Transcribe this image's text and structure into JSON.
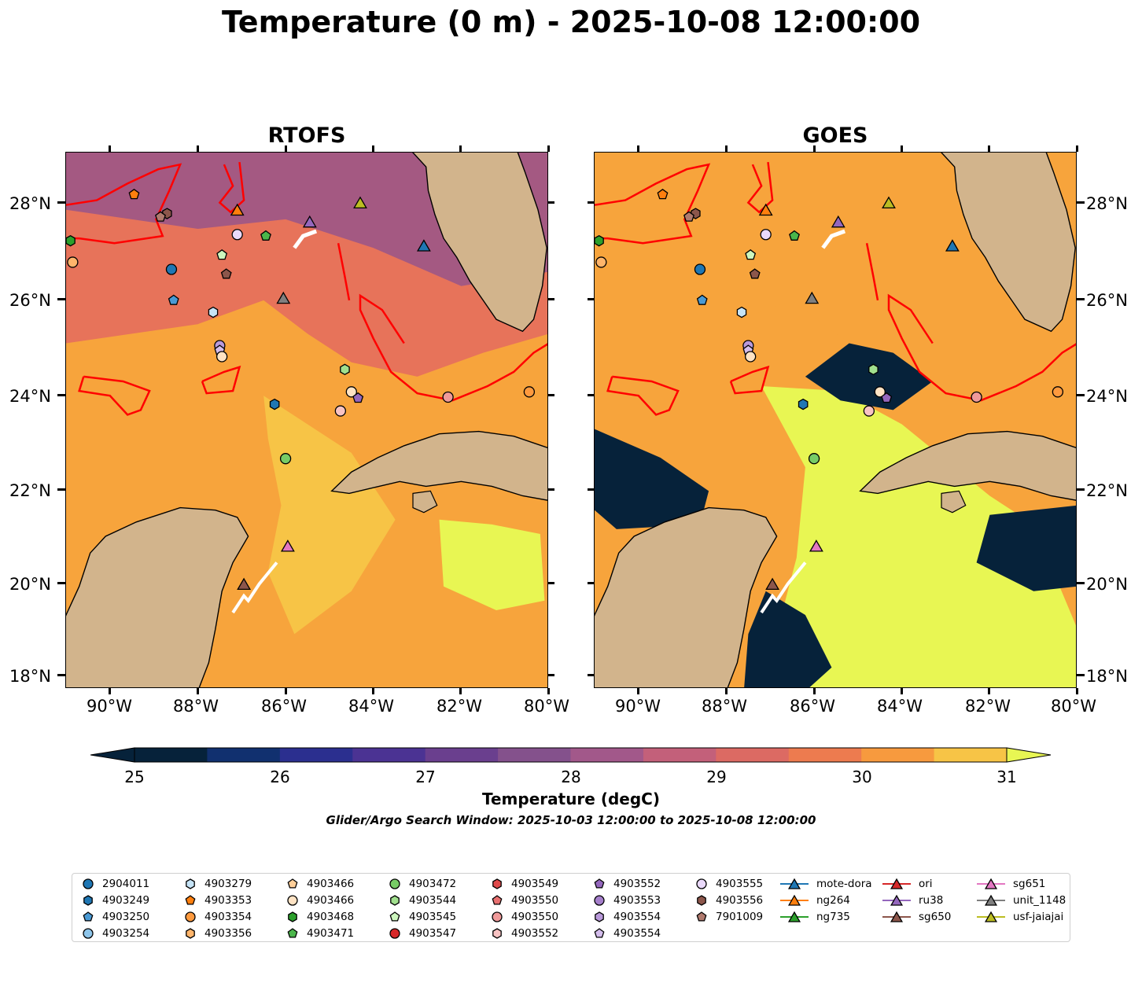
{
  "title": "Temperature (0 m) - 2025-10-08 12:00:00",
  "panels": [
    {
      "title": "RTOFS",
      "mode": "model"
    },
    {
      "title": "GOES",
      "mode": "satellite"
    }
  ],
  "lat_labels": [
    "18°N",
    "20°N",
    "22°N",
    "24°N",
    "26°N",
    "28°N"
  ],
  "lon_labels": [
    "90°W",
    "88°W",
    "86°W",
    "84°W",
    "82°W",
    "80°W"
  ],
  "colorbar": {
    "title": "Temperature (degC)",
    "tick_labels": [
      "25",
      "26",
      "27",
      "28",
      "29",
      "30",
      "31"
    ],
    "levels": [
      25,
      25.5,
      26,
      26.5,
      27,
      27.5,
      28,
      28.5,
      29,
      29.5,
      30,
      30.5,
      31
    ],
    "colors": [
      "#06223a",
      "#11306f",
      "#2b2f8f",
      "#4b3393",
      "#6a3f8e",
      "#84518c",
      "#a2588a",
      "#c3607a",
      "#dc6a63",
      "#ed7b4f",
      "#f79a3e",
      "#f7c446",
      "#e8f653"
    ]
  },
  "search_window": "Glider/Argo Search Window: 2025-10-03 12:00:00 to 2025-10-08 12:00:00",
  "colors": {
    "land": "#d2b48c",
    "sst_warm": "#f7a43c",
    "sst_mid": "#e7735a",
    "sst_cool": "#9c5786",
    "cloud": "#06223a",
    "hot": "#e8f653",
    "contour": "#ff0000"
  },
  "legend": [
    {
      "label": "2904011",
      "marker": "circle",
      "color": "#1f77b4"
    },
    {
      "label": "4903249",
      "marker": "hexagon",
      "color": "#1f77b4"
    },
    {
      "label": "4903250",
      "marker": "pentagon",
      "color": "#4a9ad4"
    },
    {
      "label": "4903254",
      "marker": "circle",
      "color": "#8ec5ea"
    },
    {
      "label": "4903279",
      "marker": "hexagon",
      "color": "#c6e4f7"
    },
    {
      "label": "4903353",
      "marker": "pentagon",
      "color": "#ff7f0e"
    },
    {
      "label": "4903354",
      "marker": "circle",
      "color": "#ff9a3e"
    },
    {
      "label": "4903356",
      "marker": "hexagon",
      "color": "#ffb56b"
    },
    {
      "label": "4903466",
      "marker": "pentagon",
      "color": "#ffcf99"
    },
    {
      "label": "4903466",
      "marker": "circle",
      "color": "#ffe3c4"
    },
    {
      "label": "4903468",
      "marker": "hexagon",
      "color": "#2ca02c"
    },
    {
      "label": "4903471",
      "marker": "pentagon",
      "color": "#4bb64b"
    },
    {
      "label": "4903472",
      "marker": "circle",
      "color": "#77cc66"
    },
    {
      "label": "4903544",
      "marker": "hexagon",
      "color": "#a1e08e"
    },
    {
      "label": "4903545",
      "marker": "pentagon",
      "color": "#cdf6be"
    },
    {
      "label": "4903547",
      "marker": "circle",
      "color": "#d62728"
    },
    {
      "label": "4903549",
      "marker": "hexagon",
      "color": "#df4a4b"
    },
    {
      "label": "4903550",
      "marker": "pentagon",
      "color": "#e87070"
    },
    {
      "label": "4903550",
      "marker": "circle",
      "color": "#f09a9a"
    },
    {
      "label": "4903552",
      "marker": "hexagon",
      "color": "#f8c3c3"
    },
    {
      "label": "4903552",
      "marker": "pentagon",
      "color": "#9467bd"
    },
    {
      "label": "4903553",
      "marker": "circle",
      "color": "#a57fcb"
    },
    {
      "label": "4903554",
      "marker": "hexagon",
      "color": "#b999da"
    },
    {
      "label": "4903554",
      "marker": "pentagon",
      "color": "#d4bdec"
    },
    {
      "label": "4903555",
      "marker": "circle",
      "color": "#ead9fb"
    },
    {
      "label": "4903556",
      "marker": "hexagon",
      "color": "#8c564b"
    },
    {
      "label": "7901009",
      "marker": "pentagon",
      "color": "#b07a6e"
    },
    {
      "label": "mote-dora",
      "marker": "triangle",
      "color": "#1f77b4"
    },
    {
      "label": "ng264",
      "marker": "triangle",
      "color": "#ff7f0e"
    },
    {
      "label": "ng735",
      "marker": "triangle",
      "color": "#2ca02c"
    },
    {
      "label": "ori",
      "marker": "triangle",
      "color": "#d62728"
    },
    {
      "label": "ru38",
      "marker": "triangle",
      "color": "#9467bd"
    },
    {
      "label": "sg650",
      "marker": "triangle",
      "color": "#8c564b"
    },
    {
      "label": "sg651",
      "marker": "triangle",
      "color": "#e377c2"
    },
    {
      "label": "unit_1148",
      "marker": "triangle",
      "color": "#7f7f7f"
    },
    {
      "label": "usf-jaiajai",
      "marker": "triangle",
      "color": "#bcbd22"
    }
  ],
  "floats": [
    {
      "lon": -88.6,
      "lat": 26.55,
      "marker": "circle",
      "color": "#1f77b4"
    },
    {
      "lon": -86.25,
      "lat": 23.72,
      "marker": "hexagon",
      "color": "#1f77b4"
    },
    {
      "lon": -88.55,
      "lat": 25.9,
      "marker": "pentagon",
      "color": "#4a9ad4"
    },
    {
      "lon": -87.65,
      "lat": 25.65,
      "marker": "hexagon",
      "color": "#c6e4f7"
    },
    {
      "lon": -89.45,
      "lat": 28.12,
      "marker": "pentagon",
      "color": "#ff7f0e"
    },
    {
      "lon": -80.45,
      "lat": 23.98,
      "marker": "circle",
      "color": "#ff9a3e"
    },
    {
      "lon": -90.85,
      "lat": 26.7,
      "marker": "circle",
      "color": "#ffb56b"
    },
    {
      "lon": -84.5,
      "lat": 23.98,
      "marker": "circle",
      "color": "#ffe3c4"
    },
    {
      "lon": -90.9,
      "lat": 27.15,
      "marker": "hexagon",
      "color": "#2ca02c"
    },
    {
      "lon": -86.45,
      "lat": 27.25,
      "marker": "pentagon",
      "color": "#4bb64b"
    },
    {
      "lon": -86.0,
      "lat": 22.58,
      "marker": "circle",
      "color": "#77cc66"
    },
    {
      "lon": -84.65,
      "lat": 24.45,
      "marker": "hexagon",
      "color": "#a1e08e"
    },
    {
      "lon": -87.45,
      "lat": 26.85,
      "marker": "pentagon",
      "color": "#cdf6be"
    },
    {
      "lon": -82.3,
      "lat": 23.87,
      "marker": "circle",
      "color": "#f09a9a"
    },
    {
      "lon": -84.75,
      "lat": 23.58,
      "marker": "circle",
      "color": "#f8c3c3"
    },
    {
      "lon": -84.35,
      "lat": 23.85,
      "marker": "pentagon",
      "color": "#9467bd"
    },
    {
      "lon": -87.5,
      "lat": 24.95,
      "marker": "circle",
      "color": "#b999da"
    },
    {
      "lon": -87.5,
      "lat": 24.85,
      "marker": "pentagon",
      "color": "#d4bdec"
    },
    {
      "lon": -87.1,
      "lat": 27.28,
      "marker": "circle",
      "color": "#ead9fb"
    },
    {
      "lon": -87.45,
      "lat": 24.72,
      "marker": "circle",
      "color": "#ffe3c4"
    },
    {
      "lon": -88.7,
      "lat": 27.72,
      "marker": "hexagon",
      "color": "#8c564b"
    },
    {
      "lon": -88.85,
      "lat": 27.65,
      "marker": "pentagon",
      "color": "#b07a6e"
    },
    {
      "lon": -87.35,
      "lat": 26.45,
      "marker": "pentagon",
      "color": "#8c564b"
    }
  ],
  "gliders": [
    {
      "lon": -82.85,
      "lat": 27.05,
      "color": "#1f77b4"
    },
    {
      "lon": -87.1,
      "lat": 27.8,
      "color": "#ff7f0e"
    },
    {
      "lon": -85.45,
      "lat": 27.55,
      "color": "#9467bd"
    },
    {
      "lon": -86.05,
      "lat": 25.95,
      "color": "#7f7f7f"
    },
    {
      "lon": -84.3,
      "lat": 27.95,
      "color": "#bcbd22"
    },
    {
      "lon": -85.95,
      "lat": 20.75,
      "color": "#e377c2"
    },
    {
      "lon": -86.95,
      "lat": 19.95,
      "color": "#8c564b"
    }
  ]
}
